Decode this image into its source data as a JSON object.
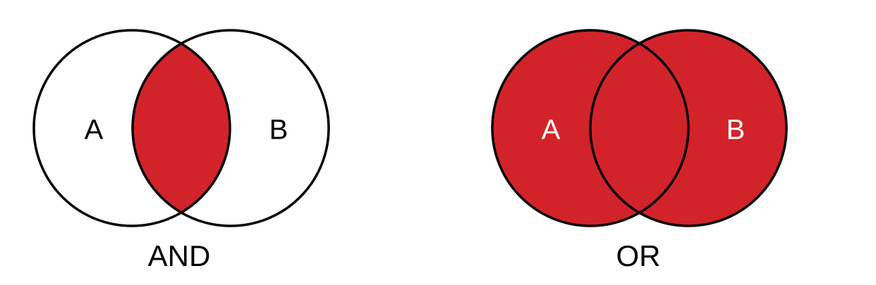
{
  "colors": {
    "fill": "#d2232a",
    "stroke": "#000000",
    "background": "#ffffff",
    "label_on_white": "#000000",
    "label_on_fill": "#ffffff"
  },
  "and_diagram": {
    "set_a_label": "A",
    "set_b_label": "B",
    "caption": "AND"
  },
  "or_diagram": {
    "set_a_label": "A",
    "set_b_label": "B",
    "caption": "OR"
  }
}
